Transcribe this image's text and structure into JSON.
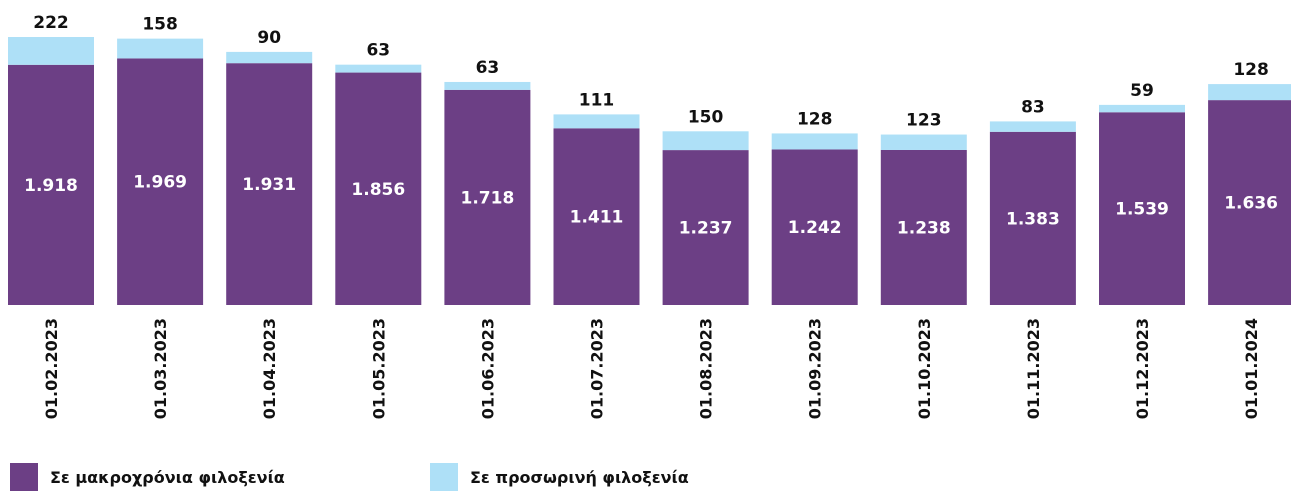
{
  "chart_data": {
    "type": "stacked_bar",
    "categories": [
      "01.02.2023",
      "01.03.2023",
      "01.04.2023",
      "01.05.2023",
      "01.06.2023",
      "01.07.2023",
      "01.08.2023",
      "01.09.2023",
      "01.10.2023",
      "01.11.2023",
      "01.12.2023",
      "01.01.2024"
    ],
    "series": [
      {
        "name": "Σε μακροχρόνια φιλοξενία",
        "color": "#6c3f85",
        "values": [
          1918,
          1969,
          1931,
          1856,
          1718,
          1411,
          1237,
          1242,
          1238,
          1383,
          1539,
          1636
        ],
        "value_labels": [
          "1.918",
          "1.969",
          "1.931",
          "1.856",
          "1.718",
          "1.411",
          "1.237",
          "1.242",
          "1.238",
          "1.383",
          "1.539",
          "1.636"
        ]
      },
      {
        "name": "Σε προσωρινή φιλοξενία",
        "color": "#aee0f7",
        "values": [
          222,
          158,
          90,
          63,
          63,
          111,
          150,
          128,
          123,
          83,
          59,
          128
        ]
      }
    ]
  }
}
